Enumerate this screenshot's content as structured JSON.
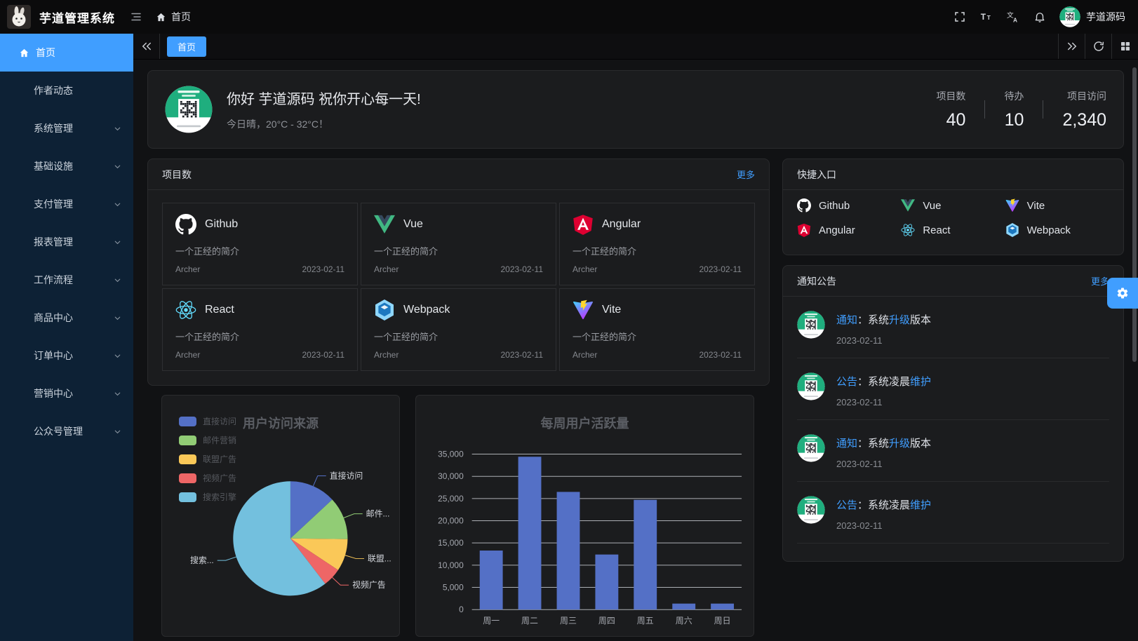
{
  "navbar": {
    "title": "芋道管理系统",
    "breadcrumb": "首页",
    "user_name": "芋道源码",
    "actions": [
      {
        "icon": "fullscreen-icon"
      },
      {
        "icon": "font-size-icon"
      },
      {
        "icon": "language-icon"
      },
      {
        "icon": "bell-icon"
      }
    ]
  },
  "sidebar": {
    "items": [
      {
        "id": "home",
        "label": "首页",
        "icon": "home-icon",
        "active": true,
        "chevron": false
      },
      {
        "id": "author",
        "label": "作者动态",
        "active": false,
        "chevron": false
      },
      {
        "id": "system",
        "label": "系统管理",
        "active": false,
        "chevron": true
      },
      {
        "id": "infra",
        "label": "基础设施",
        "active": false,
        "chevron": true
      },
      {
        "id": "pay",
        "label": "支付管理",
        "active": false,
        "chevron": true
      },
      {
        "id": "report",
        "label": "报表管理",
        "active": false,
        "chevron": true
      },
      {
        "id": "workflow",
        "label": "工作流程",
        "active": false,
        "chevron": true
      },
      {
        "id": "product",
        "label": "商品中心",
        "active": false,
        "chevron": true
      },
      {
        "id": "order",
        "label": "订单中心",
        "active": false,
        "chevron": true
      },
      {
        "id": "market",
        "label": "营销中心",
        "active": false,
        "chevron": true
      },
      {
        "id": "mp",
        "label": "公众号管理",
        "active": false,
        "chevron": true
      }
    ]
  },
  "tabbar": {
    "tabs": [
      {
        "label": "首页",
        "active": true
      }
    ]
  },
  "welcome": {
    "greeting": "你好 芋道源码 祝你开心每一天!",
    "weather": "今日晴，20°C - 32°C！",
    "stats": [
      {
        "label": "项目数",
        "value": "40"
      },
      {
        "label": "待办",
        "value": "10"
      },
      {
        "label": "项目访问",
        "value": "2,340"
      }
    ]
  },
  "projects": {
    "title": "项目数",
    "more": "更多",
    "items": [
      {
        "name": "Github",
        "icon": "github-icon",
        "desc": "一个正经的简介",
        "author": "Archer",
        "date": "2023-02-11"
      },
      {
        "name": "Vue",
        "icon": "vue-icon",
        "desc": "一个正经的简介",
        "author": "Archer",
        "date": "2023-02-11"
      },
      {
        "name": "Angular",
        "icon": "angular-icon",
        "desc": "一个正经的简介",
        "author": "Archer",
        "date": "2023-02-11"
      },
      {
        "name": "React",
        "icon": "react-icon",
        "desc": "一个正经的简介",
        "author": "Archer",
        "date": "2023-02-11"
      },
      {
        "name": "Webpack",
        "icon": "webpack-icon",
        "desc": "一个正经的简介",
        "author": "Archer",
        "date": "2023-02-11"
      },
      {
        "name": "Vite",
        "icon": "vite-icon",
        "desc": "一个正经的简介",
        "author": "Archer",
        "date": "2023-02-11"
      }
    ]
  },
  "shortcuts": {
    "title": "快捷入口",
    "items": [
      {
        "name": "Github",
        "icon": "github-icon"
      },
      {
        "name": "Vue",
        "icon": "vue-icon"
      },
      {
        "name": "Vite",
        "icon": "vite-icon"
      },
      {
        "name": "Angular",
        "icon": "angular-icon"
      },
      {
        "name": "React",
        "icon": "react-icon"
      },
      {
        "name": "Webpack",
        "icon": "webpack-icon"
      }
    ]
  },
  "notices": {
    "title": "通知公告",
    "more": "更多",
    "items": [
      {
        "segments": [
          {
            "text": "通知",
            "highlight": true
          },
          {
            "text": "：系统",
            "highlight": false
          },
          {
            "text": "升级",
            "highlight": true
          },
          {
            "text": "版本",
            "highlight": false
          }
        ],
        "date": "2023-02-11"
      },
      {
        "segments": [
          {
            "text": "公告",
            "highlight": true
          },
          {
            "text": "：系统凌晨",
            "highlight": false
          },
          {
            "text": "维护",
            "highlight": true
          }
        ],
        "date": "2023-02-11"
      },
      {
        "segments": [
          {
            "text": "通知",
            "highlight": true
          },
          {
            "text": "：系统",
            "highlight": false
          },
          {
            "text": "升级",
            "highlight": true
          },
          {
            "text": "版本",
            "highlight": false
          }
        ],
        "date": "2023-02-11"
      },
      {
        "segments": [
          {
            "text": "公告",
            "highlight": true
          },
          {
            "text": "：系统凌晨",
            "highlight": false
          },
          {
            "text": "维护",
            "highlight": true
          }
        ],
        "date": "2023-02-11"
      }
    ]
  },
  "chart_data": [
    {
      "type": "pie",
      "title": "用户访问来源",
      "legend_position": "top-left",
      "series": [
        {
          "name": "直接访问",
          "value": 335,
          "color": "#5470c6",
          "callout_label": "直接访问"
        },
        {
          "name": "邮件营销",
          "value": 310,
          "color": "#91cc75",
          "callout_label": "邮件..."
        },
        {
          "name": "联盟广告",
          "value": 234,
          "color": "#fac858",
          "callout_label": "联盟..."
        },
        {
          "name": "视频广告",
          "value": 135,
          "color": "#ee6666",
          "callout_label": "视频广告"
        },
        {
          "name": "搜索引擎",
          "value": 1548,
          "color": "#73c0de",
          "callout_label": "搜索..."
        }
      ]
    },
    {
      "type": "bar",
      "title": "每周用户活跃量",
      "categories": [
        "周一",
        "周二",
        "周三",
        "周四",
        "周五",
        "周六",
        "周日"
      ],
      "values": [
        13300,
        34400,
        26500,
        12400,
        24700,
        1350,
        1350
      ],
      "ylim": [
        0,
        35000
      ],
      "ytick_step": 5000,
      "bar_color": "#5470c6",
      "grid": true,
      "xlabel": "",
      "ylabel": ""
    }
  ],
  "colors": {
    "accent": "#409eff",
    "sidebar_active": "#409eff",
    "notice_highlight": "#409eff"
  }
}
